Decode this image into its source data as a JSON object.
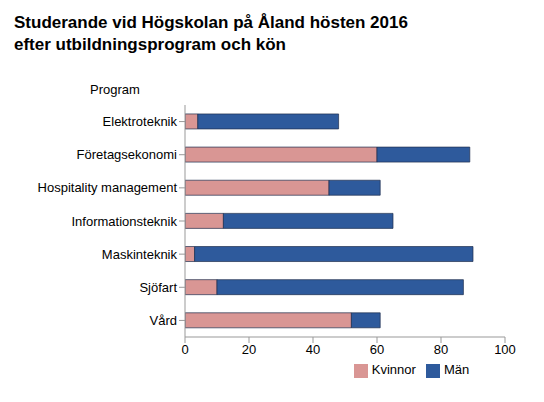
{
  "chart_data": {
    "type": "bar",
    "title": "Studerande vid Högskolan på Åland hösten 2016\nefter utbildningsprogram och kön",
    "ylabel": "Program",
    "orientation": "horizontal",
    "stacked": true,
    "legend": "bottom",
    "grid": false,
    "categories": [
      "Elektroteknik",
      "Företagsekonomi",
      "Hospitality management",
      "Informationsteknik",
      "Maskinteknik",
      "Sjöfart",
      "Vård"
    ],
    "series": [
      {
        "name": "Kvinnor",
        "color": "#d99694",
        "values": [
          4,
          60,
          45,
          12,
          3,
          10,
          52
        ]
      },
      {
        "name": "Män",
        "color": "#2e5a9c",
        "values": [
          44,
          29,
          16,
          53,
          87,
          77,
          9
        ]
      }
    ],
    "xlim": [
      0,
      100
    ],
    "xticks": [
      0,
      20,
      40,
      60,
      80,
      100
    ]
  }
}
